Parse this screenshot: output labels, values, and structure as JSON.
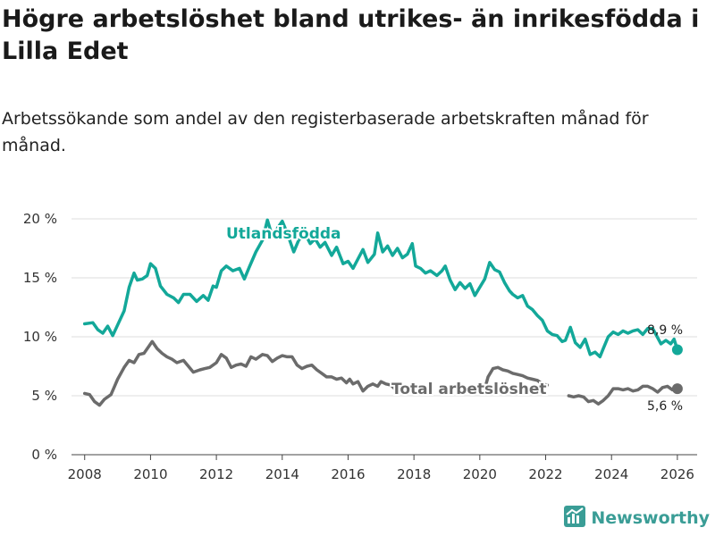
{
  "title": "Högre arbetslöshet bland utrikes- än inrikesfödda i Lilla Edet",
  "subtitle": "Arbetssökande som andel av den registerbaserade arbetskraften månad för månad.",
  "brand": {
    "name": "Newsworthy",
    "icon": "newsworthy-logo-icon",
    "color": "#3a9d96"
  },
  "colors": {
    "utlandsfodda": "#13a899",
    "total": "#6b6b6b",
    "grid": "#dddddd"
  },
  "chart_data": {
    "type": "line",
    "xlabel": "",
    "ylabel": "",
    "xlim": [
      2007.6,
      2026.6
    ],
    "ylim": [
      0,
      20
    ],
    "x_ticks": [
      2008,
      2010,
      2012,
      2014,
      2016,
      2018,
      2020,
      2022,
      2024,
      2026
    ],
    "x_tick_labels": [
      "2008",
      "2010",
      "2012",
      "2014",
      "2016",
      "2018",
      "2020",
      "2022",
      "2024",
      "2026"
    ],
    "y_ticks": [
      0,
      5,
      10,
      15,
      20
    ],
    "y_tick_labels": [
      "0 %",
      "5 %",
      "10 %",
      "15 %",
      "20 %"
    ],
    "series": [
      {
        "name": "Utlandsfödda",
        "color": "#13a899",
        "end_label": "8,9 %",
        "points": [
          [
            2008.0,
            11.1
          ],
          [
            2008.25,
            11.2
          ],
          [
            2008.4,
            10.6
          ],
          [
            2008.55,
            10.3
          ],
          [
            2008.7,
            10.9
          ],
          [
            2008.85,
            10.1
          ],
          [
            2009.0,
            11.0
          ],
          [
            2009.2,
            12.2
          ],
          [
            2009.35,
            14.2
          ],
          [
            2009.5,
            15.4
          ],
          [
            2009.6,
            14.8
          ],
          [
            2009.75,
            14.9
          ],
          [
            2009.9,
            15.2
          ],
          [
            2010.0,
            16.2
          ],
          [
            2010.15,
            15.8
          ],
          [
            2010.3,
            14.3
          ],
          [
            2010.5,
            13.6
          ],
          [
            2010.7,
            13.3
          ],
          [
            2010.85,
            12.9
          ],
          [
            2011.0,
            13.6
          ],
          [
            2011.2,
            13.6
          ],
          [
            2011.4,
            13.0
          ],
          [
            2011.6,
            13.5
          ],
          [
            2011.75,
            13.1
          ],
          [
            2011.9,
            14.3
          ],
          [
            2012.0,
            14.2
          ],
          [
            2012.15,
            15.6
          ],
          [
            2012.3,
            16.0
          ],
          [
            2012.5,
            15.6
          ],
          [
            2012.7,
            15.8
          ],
          [
            2012.85,
            14.9
          ],
          [
            2013.0,
            15.9
          ],
          [
            2013.2,
            17.2
          ],
          [
            2013.4,
            18.2
          ],
          [
            2013.55,
            19.9
          ],
          [
            2013.7,
            18.5
          ],
          [
            2013.85,
            19.2
          ],
          [
            2014.0,
            19.8
          ],
          [
            2014.15,
            18.8
          ],
          [
            2014.35,
            17.2
          ],
          [
            2014.5,
            18.2
          ],
          [
            2014.7,
            18.7
          ],
          [
            2014.85,
            17.9
          ],
          [
            2015.0,
            18.3
          ],
          [
            2015.15,
            17.6
          ],
          [
            2015.3,
            18.0
          ],
          [
            2015.5,
            16.9
          ],
          [
            2015.65,
            17.6
          ],
          [
            2015.85,
            16.2
          ],
          [
            2016.0,
            16.4
          ],
          [
            2016.15,
            15.8
          ],
          [
            2016.3,
            16.6
          ],
          [
            2016.45,
            17.4
          ],
          [
            2016.6,
            16.3
          ],
          [
            2016.8,
            17.0
          ],
          [
            2016.9,
            18.8
          ],
          [
            2017.05,
            17.2
          ],
          [
            2017.2,
            17.7
          ],
          [
            2017.35,
            16.9
          ],
          [
            2017.5,
            17.5
          ],
          [
            2017.65,
            16.7
          ],
          [
            2017.8,
            17.0
          ],
          [
            2017.95,
            17.9
          ],
          [
            2018.05,
            16.0
          ],
          [
            2018.2,
            15.8
          ],
          [
            2018.35,
            15.4
          ],
          [
            2018.5,
            15.6
          ],
          [
            2018.7,
            15.2
          ],
          [
            2018.85,
            15.6
          ],
          [
            2018.95,
            16.0
          ],
          [
            2019.1,
            14.8
          ],
          [
            2019.25,
            14.0
          ],
          [
            2019.4,
            14.6
          ],
          [
            2019.55,
            14.1
          ],
          [
            2019.7,
            14.5
          ],
          [
            2019.85,
            13.5
          ],
          [
            2020.0,
            14.2
          ],
          [
            2020.15,
            14.9
          ],
          [
            2020.3,
            16.3
          ],
          [
            2020.45,
            15.7
          ],
          [
            2020.6,
            15.5
          ],
          [
            2020.75,
            14.6
          ],
          [
            2020.9,
            13.9
          ],
          [
            2021.0,
            13.6
          ],
          [
            2021.15,
            13.3
          ],
          [
            2021.3,
            13.5
          ],
          [
            2021.45,
            12.6
          ],
          [
            2021.6,
            12.3
          ],
          [
            2021.75,
            11.8
          ],
          [
            2021.9,
            11.4
          ],
          [
            2022.05,
            10.5
          ],
          [
            2022.2,
            10.2
          ],
          [
            2022.35,
            10.1
          ],
          [
            2022.5,
            9.6
          ],
          [
            2022.6,
            9.7
          ],
          [
            2022.75,
            10.8
          ],
          [
            2022.9,
            9.5
          ],
          [
            2023.05,
            9.1
          ],
          [
            2023.2,
            9.8
          ],
          [
            2023.35,
            8.5
          ],
          [
            2023.5,
            8.7
          ],
          [
            2023.65,
            8.3
          ],
          [
            2023.75,
            9.0
          ],
          [
            2023.9,
            10.0
          ],
          [
            2024.05,
            10.4
          ],
          [
            2024.2,
            10.2
          ],
          [
            2024.35,
            10.5
          ],
          [
            2024.5,
            10.3
          ],
          [
            2024.65,
            10.5
          ],
          [
            2024.8,
            10.6
          ],
          [
            2024.95,
            10.2
          ],
          [
            2025.1,
            10.7
          ],
          [
            2025.25,
            10.7
          ],
          [
            2025.35,
            10.2
          ],
          [
            2025.5,
            9.4
          ],
          [
            2025.65,
            9.7
          ],
          [
            2025.8,
            9.4
          ],
          [
            2025.9,
            9.8
          ],
          [
            2026.0,
            8.9
          ]
        ]
      },
      {
        "name": "Total arbetslöshet",
        "color": "#6b6b6b",
        "end_label": "5,6 %",
        "points": [
          [
            2008.0,
            5.2
          ],
          [
            2008.15,
            5.1
          ],
          [
            2008.3,
            4.5
          ],
          [
            2008.45,
            4.2
          ],
          [
            2008.6,
            4.7
          ],
          [
            2008.8,
            5.1
          ],
          [
            2009.0,
            6.4
          ],
          [
            2009.2,
            7.4
          ],
          [
            2009.35,
            8.0
          ],
          [
            2009.5,
            7.8
          ],
          [
            2009.65,
            8.5
          ],
          [
            2009.8,
            8.6
          ],
          [
            2009.95,
            9.2
          ],
          [
            2010.05,
            9.6
          ],
          [
            2010.2,
            9.0
          ],
          [
            2010.35,
            8.6
          ],
          [
            2010.5,
            8.3
          ],
          [
            2010.65,
            8.1
          ],
          [
            2010.8,
            7.8
          ],
          [
            2011.0,
            8.0
          ],
          [
            2011.15,
            7.5
          ],
          [
            2011.3,
            7.0
          ],
          [
            2011.5,
            7.2
          ],
          [
            2011.65,
            7.3
          ],
          [
            2011.8,
            7.4
          ],
          [
            2012.0,
            7.8
          ],
          [
            2012.15,
            8.5
          ],
          [
            2012.3,
            8.2
          ],
          [
            2012.45,
            7.4
          ],
          [
            2012.6,
            7.6
          ],
          [
            2012.75,
            7.7
          ],
          [
            2012.9,
            7.5
          ],
          [
            2013.05,
            8.3
          ],
          [
            2013.2,
            8.1
          ],
          [
            2013.4,
            8.5
          ],
          [
            2013.55,
            8.4
          ],
          [
            2013.7,
            7.9
          ],
          [
            2013.85,
            8.2
          ],
          [
            2014.0,
            8.4
          ],
          [
            2014.15,
            8.3
          ],
          [
            2014.3,
            8.3
          ],
          [
            2014.45,
            7.6
          ],
          [
            2014.6,
            7.3
          ],
          [
            2014.75,
            7.5
          ],
          [
            2014.9,
            7.6
          ],
          [
            2015.05,
            7.2
          ],
          [
            2015.2,
            6.9
          ],
          [
            2015.35,
            6.6
          ],
          [
            2015.5,
            6.6
          ],
          [
            2015.65,
            6.4
          ],
          [
            2015.8,
            6.5
          ],
          [
            2015.95,
            6.1
          ],
          [
            2016.05,
            6.4
          ],
          [
            2016.15,
            6.0
          ],
          [
            2016.3,
            6.2
          ],
          [
            2016.45,
            5.4
          ],
          [
            2016.6,
            5.8
          ],
          [
            2016.75,
            6.0
          ],
          [
            2016.9,
            5.8
          ],
          [
            2017.0,
            6.2
          ],
          [
            2017.15,
            6.0
          ],
          [
            2017.3,
            5.9
          ],
          [
            2017.45,
            5.5
          ]
        ],
        "points_2": [
          [
            2020.15,
            5.6
          ],
          [
            2020.25,
            6.6
          ],
          [
            2020.4,
            7.3
          ],
          [
            2020.55,
            7.4
          ],
          [
            2020.7,
            7.2
          ],
          [
            2020.85,
            7.1
          ],
          [
            2021.0,
            6.9
          ],
          [
            2021.15,
            6.8
          ],
          [
            2021.3,
            6.7
          ],
          [
            2021.45,
            6.5
          ],
          [
            2021.6,
            6.4
          ],
          [
            2021.75,
            6.3
          ],
          [
            2021.9,
            6.0
          ],
          [
            2022.05,
            5.9
          ]
        ],
        "points_3": [
          [
            2022.7,
            5.0
          ],
          [
            2022.85,
            4.9
          ],
          [
            2023.0,
            5.0
          ],
          [
            2023.15,
            4.9
          ],
          [
            2023.3,
            4.5
          ],
          [
            2023.45,
            4.6
          ],
          [
            2023.6,
            4.3
          ],
          [
            2023.75,
            4.6
          ],
          [
            2023.9,
            5.0
          ],
          [
            2024.05,
            5.6
          ],
          [
            2024.2,
            5.6
          ],
          [
            2024.35,
            5.5
          ],
          [
            2024.5,
            5.6
          ],
          [
            2024.65,
            5.4
          ],
          [
            2024.8,
            5.5
          ],
          [
            2024.95,
            5.8
          ],
          [
            2025.1,
            5.8
          ],
          [
            2025.25,
            5.6
          ],
          [
            2025.4,
            5.3
          ],
          [
            2025.55,
            5.7
          ],
          [
            2025.7,
            5.8
          ],
          [
            2025.85,
            5.5
          ],
          [
            2026.0,
            5.6
          ]
        ]
      }
    ]
  }
}
